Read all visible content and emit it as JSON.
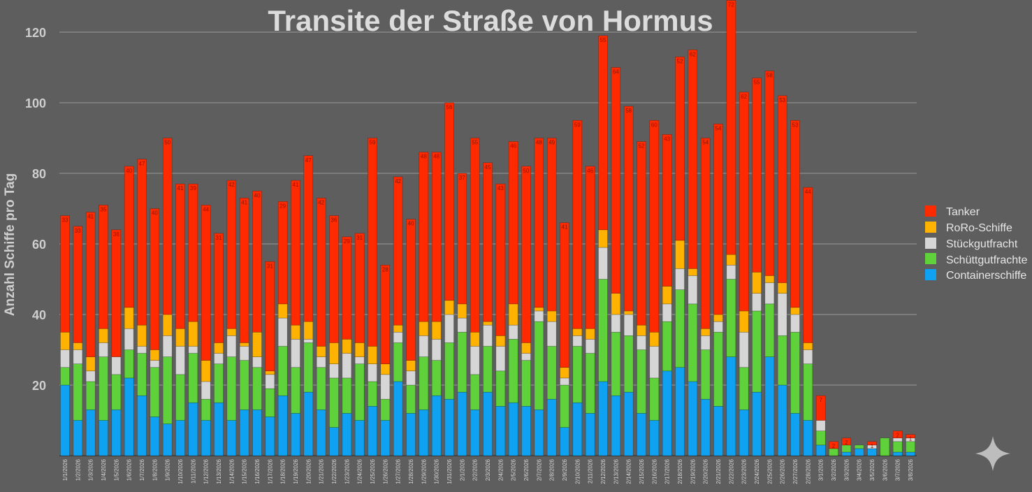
{
  "chart_data": {
    "type": "bar",
    "stacked": true,
    "title": "Transite der Straße von Hormus",
    "xlabel": "",
    "ylabel": "Anzahl Schiffe pro Tag",
    "ylim": [
      0,
      120
    ],
    "yticks": [
      20,
      40,
      60,
      80,
      100,
      120
    ],
    "grid": true,
    "legend_position": "right",
    "categories": [
      "1/1/2026",
      "1/2/2026",
      "1/3/2026",
      "1/4/2026",
      "1/5/2026",
      "1/6/2026",
      "1/7/2026",
      "1/8/2026",
      "1/9/2026",
      "1/10/2026",
      "1/11/2026",
      "1/12/2026",
      "1/13/2026",
      "1/14/2026",
      "1/15/2026",
      "1/16/2026",
      "1/17/2026",
      "1/18/2026",
      "1/19/2026",
      "1/20/2026",
      "1/21/2026",
      "1/22/2026",
      "1/23/2026",
      "1/24/2026",
      "1/25/2026",
      "1/26/2026",
      "1/27/2026",
      "1/28/2026",
      "1/29/2026",
      "1/30/2026",
      "1/31/2026",
      "2/1/2026",
      "2/2/2026",
      "2/3/2026",
      "2/4/2026",
      "2/5/2026",
      "2/6/2026",
      "2/7/2026",
      "2/8/2026",
      "2/9/2026",
      "2/10/2026",
      "2/11/2026",
      "2/12/2026",
      "2/13/2026",
      "2/14/2026",
      "2/15/2026",
      "2/16/2026",
      "2/17/2026",
      "2/18/2026",
      "2/19/2026",
      "2/20/2026",
      "2/21/2026",
      "2/22/2026",
      "2/23/2026",
      "2/24/2026",
      "2/25/2026",
      "2/26/2026",
      "2/27/2026",
      "2/28/2026",
      "3/1/2026",
      "3/2/2026",
      "3/3/2026",
      "3/4/2026",
      "3/5/2026",
      "3/6/2026",
      "3/7/2026",
      "3/8/2026"
    ],
    "series": [
      {
        "name": "Containerschiffe",
        "color": "#0fa2f2",
        "values": [
          20,
          10,
          13,
          10,
          13,
          22,
          17,
          11,
          9,
          10,
          15,
          10,
          15,
          10,
          13,
          13,
          11,
          17,
          12,
          18,
          13,
          8,
          12,
          10,
          14,
          10,
          21,
          12,
          13,
          17,
          16,
          18,
          13,
          18,
          14,
          15,
          14,
          13,
          16,
          8,
          15,
          12,
          21,
          17,
          18,
          12,
          10,
          24,
          25,
          21,
          16,
          14,
          28,
          13,
          18,
          28,
          20,
          12,
          10,
          3,
          0,
          1,
          2,
          2,
          0,
          1,
          1
        ]
      },
      {
        "name": "Schüttgutfrachter",
        "color": "#5fd13a",
        "values": [
          5,
          16,
          8,
          18,
          10,
          8,
          12,
          14,
          19,
          13,
          14,
          6,
          11,
          18,
          14,
          12,
          8,
          14,
          13,
          14,
          12,
          14,
          10,
          16,
          7,
          6,
          11,
          8,
          15,
          10,
          16,
          17,
          10,
          13,
          10,
          18,
          13,
          25,
          15,
          12,
          16,
          17,
          29,
          18,
          16,
          18,
          12,
          14,
          22,
          22,
          14,
          21,
          22,
          12,
          23,
          15,
          14,
          23,
          16,
          4,
          2,
          2,
          1,
          0,
          5,
          3,
          3
        ]
      },
      {
        "name": "Stückgutfracht",
        "color": "#d6d6d6",
        "values": [
          5,
          4,
          3,
          4,
          5,
          6,
          2,
          2,
          6,
          8,
          2,
          5,
          3,
          6,
          4,
          3,
          4,
          8,
          8,
          1,
          3,
          4,
          7,
          2,
          5,
          7,
          3,
          4,
          6,
          6,
          8,
          4,
          8,
          6,
          7,
          4,
          2,
          3,
          7,
          2,
          3,
          4,
          9,
          5,
          6,
          4,
          9,
          5,
          6,
          8,
          4,
          3,
          4,
          10,
          5,
          6,
          12,
          5,
          4,
          3,
          0,
          0,
          0,
          1,
          0,
          1,
          1
        ]
      },
      {
        "name": "RoRo-Schiffe",
        "color": "#ffb300",
        "values": [
          5,
          2,
          4,
          4,
          0,
          6,
          6,
          3,
          6,
          5,
          7,
          6,
          3,
          2,
          1,
          7,
          1,
          4,
          4,
          5,
          3,
          6,
          4,
          4,
          5,
          3,
          2,
          3,
          4,
          5,
          4,
          4,
          4,
          1,
          3,
          6,
          3,
          1,
          3,
          3,
          2,
          3,
          5,
          6,
          1,
          3,
          4,
          5,
          8,
          2,
          2,
          2,
          3,
          6,
          6,
          2,
          3,
          2,
          2,
          0,
          0,
          0,
          0,
          0,
          0,
          0,
          0
        ]
      },
      {
        "name": "Tanker",
        "color": "#ff2a00",
        "values": [
          33,
          33,
          41,
          35,
          36,
          40,
          47,
          40,
          50,
          41,
          39,
          44,
          31,
          42,
          41,
          40,
          31,
          29,
          41,
          47,
          42,
          36,
          29,
          31,
          59,
          28,
          42,
          40,
          48,
          48,
          56,
          37,
          55,
          45,
          43,
          46,
          50,
          48,
          49,
          41,
          59,
          46,
          55,
          64,
          58,
          52,
          60,
          43,
          52,
          62,
          54,
          54,
          72,
          62,
          55,
          58,
          53,
          53,
          44,
          7,
          2,
          2,
          0,
          1,
          0,
          2,
          1
        ]
      }
    ],
    "legend": [
      "Tanker",
      "RoRo-Schiffe",
      "Stückgutfracht",
      "Schüttgutfrachte",
      "Containerschiffe"
    ]
  },
  "watermark": {
    "icon": "sparkle-icon"
  }
}
